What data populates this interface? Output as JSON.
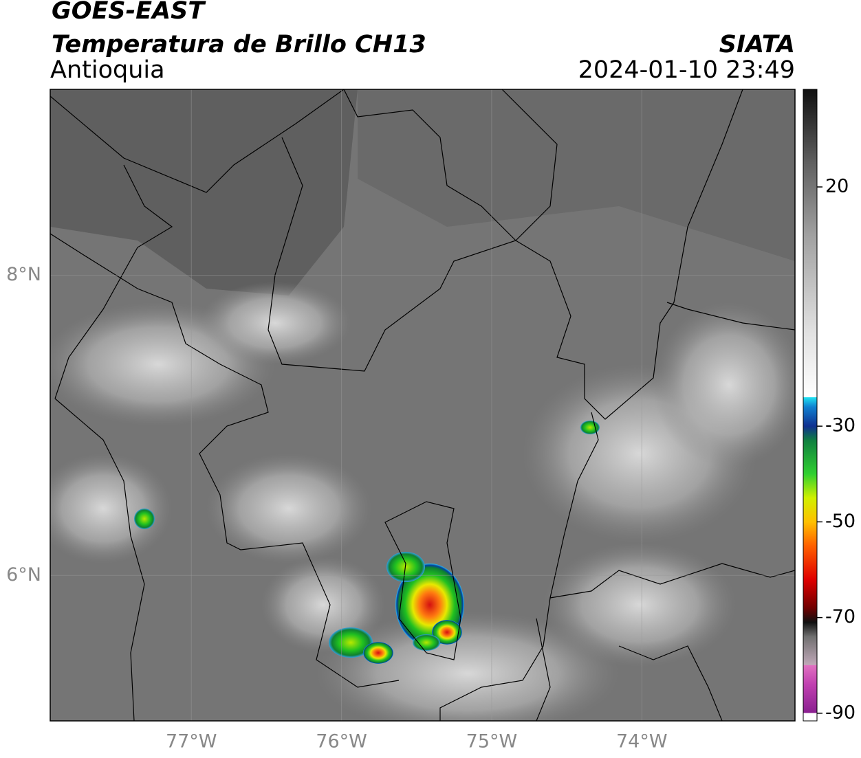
{
  "header": {
    "title": "GOES-EAST",
    "subtitle": "Temperatura de Brillo CH13",
    "region": "Antioquia",
    "source": "SIATA",
    "datetime": "2024-01-10 23:49"
  },
  "map": {
    "lonlim": [
      -77.94,
      -72.98
    ],
    "latlim": [
      5.03,
      9.24
    ],
    "lonticks": [
      {
        "value": -77,
        "label": "77°W"
      },
      {
        "value": -76,
        "label": "76°W"
      },
      {
        "value": -75,
        "label": "75°W"
      },
      {
        "value": -74,
        "label": "74°W"
      }
    ],
    "latticks": [
      {
        "value": 8,
        "label": "8°N"
      },
      {
        "value": 6,
        "label": "6°N"
      }
    ]
  },
  "colorbar": {
    "range": [
      -91.6,
      40.4
    ],
    "ticks": [
      20,
      -30,
      -50,
      -70,
      -90
    ]
  }
}
